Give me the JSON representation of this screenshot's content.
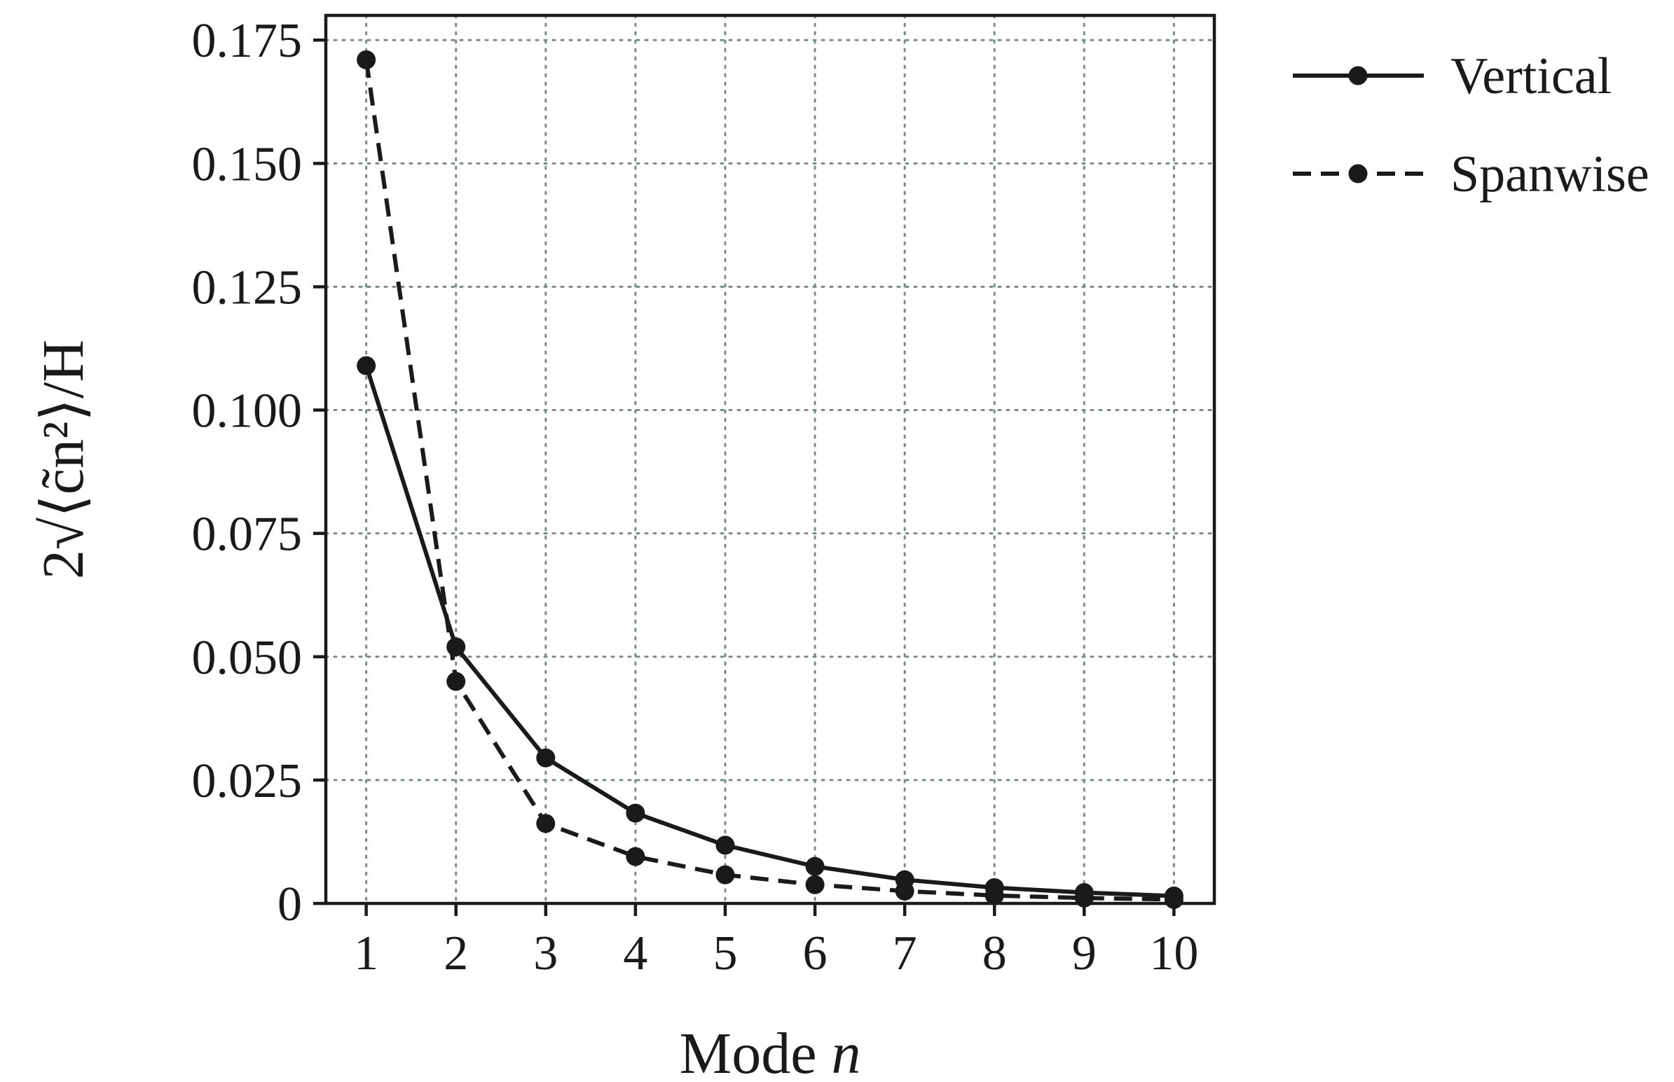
{
  "chart_data": {
    "type": "line",
    "title": "",
    "xlabel": "Mode n",
    "xlabel_parts": {
      "text": "Mode ",
      "var": "n"
    },
    "ylabel": "2√⟨c̃n²⟩/H",
    "x": [
      1,
      2,
      3,
      4,
      5,
      6,
      7,
      8,
      9,
      10
    ],
    "xlim": [
      0.55,
      10.45
    ],
    "ylim": [
      0,
      0.18
    ],
    "yticks": [
      0,
      0.025,
      0.05,
      0.075,
      0.1,
      0.125,
      0.15,
      0.175
    ],
    "ytick_labels": [
      "0",
      "0.025",
      "0.050",
      "0.075",
      "0.100",
      "0.125",
      "0.150",
      "0.175"
    ],
    "xtick_labels": [
      "1",
      "2",
      "3",
      "4",
      "5",
      "6",
      "7",
      "8",
      "9",
      "10"
    ],
    "grid": true,
    "legend_position": "outside-top-right",
    "series": [
      {
        "name": "Vertical",
        "style": "solid",
        "color": "#1a1a1a",
        "values": [
          0.109,
          0.052,
          0.0295,
          0.0183,
          0.0118,
          0.0075,
          0.0048,
          0.0032,
          0.0022,
          0.0015
        ]
      },
      {
        "name": "Spanwise",
        "style": "dashed",
        "color": "#1a1a1a",
        "values": [
          0.171,
          0.045,
          0.0162,
          0.0095,
          0.0058,
          0.0038,
          0.0025,
          0.0016,
          0.0011,
          0.0008
        ]
      }
    ]
  }
}
